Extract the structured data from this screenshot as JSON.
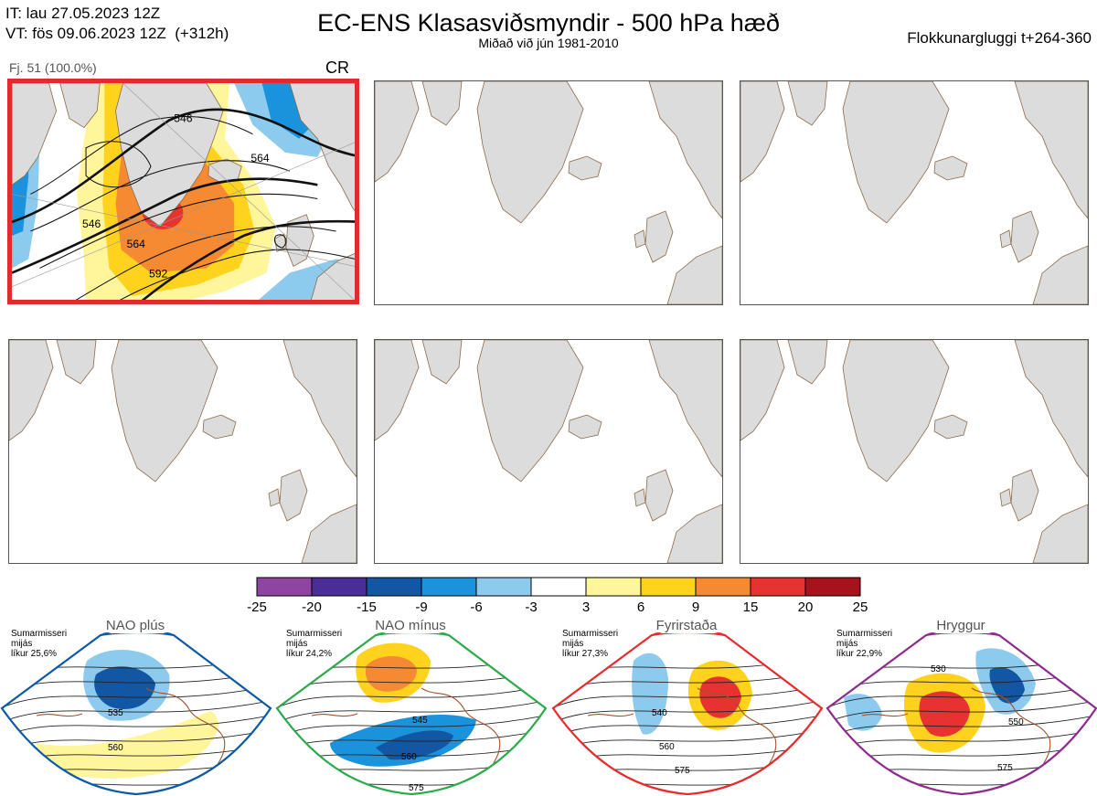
{
  "header": {
    "it_line": "IT: lau 27.05.2023 12Z",
    "vt_line": "VT: fös 09.06.2023 12Z  (+312h)",
    "title": "EC-ENS Klasasviðsmyndir - 500 hPa hæð",
    "subtitle": "Miðað við jún 1981-2010",
    "window": "Flokkunargluggi t+264-360"
  },
  "cluster": {
    "members": "Fj. 51 (100.0%)",
    "regime_code": "CR",
    "contour_labels": [
      "546",
      "564",
      "546",
      "564",
      "592"
    ]
  },
  "chart_data": {
    "type": "heatmap",
    "title": "EC-ENS Klasasviðsmyndir - 500 hPa hæð",
    "colorbar": {
      "ticks": [
        "-25",
        "-20",
        "-15",
        "-9",
        "-6",
        "-3",
        "3",
        "6",
        "9",
        "15",
        "20",
        "25"
      ],
      "colors": [
        "#8e44a0",
        "#4a2d96",
        "#1257a3",
        "#1b93dc",
        "#8ccbee",
        "#ffffff",
        "#fff59a",
        "#ffd21e",
        "#f58a32",
        "#e8322f",
        "#a8121c"
      ]
    },
    "regimes": [
      {
        "name": "NAO plús",
        "season": "Sumarmisseri",
        "mean": "mijás",
        "prob": "líkur 25,6%",
        "probability": 25.6,
        "color": "#0b5aa8",
        "labels": [
          "535",
          "560"
        ]
      },
      {
        "name": "NAO mínus",
        "season": "Sumarmisseri",
        "mean": "mijás",
        "prob": "líkur 24,2%",
        "probability": 24.2,
        "color": "#2aab4a",
        "labels": [
          "545",
          "560",
          "575"
        ]
      },
      {
        "name": "Fyrirstaða",
        "season": "Sumarmisseri",
        "mean": "mijás",
        "prob": "líkur 27,3%",
        "probability": 27.3,
        "color": "#e82a2a",
        "labels": [
          "540",
          "560",
          "575"
        ]
      },
      {
        "name": "Hryggur",
        "season": "Sumarmisseri",
        "mean": "mijás",
        "prob": "líkur 22,9%",
        "probability": 22.9,
        "color": "#8e2a8e",
        "labels": [
          "530",
          "550",
          "575"
        ]
      }
    ]
  }
}
